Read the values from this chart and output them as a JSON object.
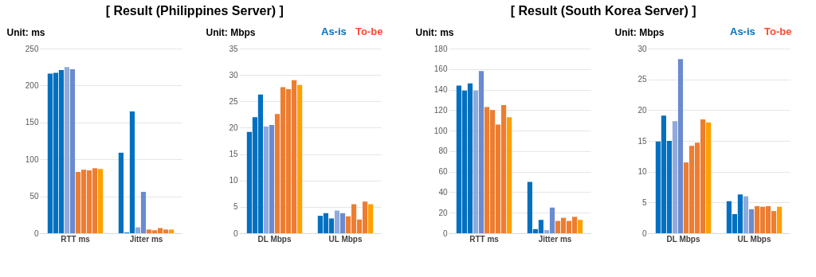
{
  "chart_data": [
    {
      "type": "bar",
      "title": "[ Result (Philippines Server) ]",
      "ylabel": "Unit: ms",
      "categories": [
        "RTT ms",
        "Jitter ms"
      ],
      "ylim": [
        0,
        250
      ],
      "yticks": [
        0,
        50,
        100,
        150,
        200,
        250
      ],
      "grid": "y",
      "legend": false,
      "series": [
        {
          "color": "#0070c0",
          "values": [
            216,
            109
          ]
        },
        {
          "color": "#0070c0",
          "values": [
            217,
            1
          ]
        },
        {
          "color": "#0070c0",
          "values": [
            221,
            165
          ]
        },
        {
          "color": "#8faadc",
          "values": [
            225,
            8
          ]
        },
        {
          "color": "#6a8bd0",
          "values": [
            222,
            56
          ]
        },
        {
          "color": "#ed7d31",
          "values": [
            83,
            5
          ]
        },
        {
          "color": "#ed7d31",
          "values": [
            86,
            4
          ]
        },
        {
          "color": "#ed7d31",
          "values": [
            85,
            7
          ]
        },
        {
          "color": "#ed7d31",
          "values": [
            88,
            5
          ]
        },
        {
          "color": "#ffa000",
          "values": [
            87,
            5
          ]
        }
      ]
    },
    {
      "type": "bar",
      "ylabel": "Unit: Mbps",
      "annotations": [
        "As-is",
        "To-be"
      ],
      "categories": [
        "DL Mbps",
        "UL Mbps"
      ],
      "ylim": [
        0,
        35
      ],
      "yticks": [
        0,
        5,
        10,
        15,
        20,
        25,
        30,
        35
      ],
      "grid": "y",
      "legend": false,
      "series": [
        {
          "color": "#0070c0",
          "values": [
            19.2,
            3.3
          ]
        },
        {
          "color": "#0070c0",
          "values": [
            22,
            3.8
          ]
        },
        {
          "color": "#0070c0",
          "values": [
            26.3,
            2.8
          ]
        },
        {
          "color": "#8faadc",
          "values": [
            20.2,
            4.3
          ]
        },
        {
          "color": "#6a8bd0",
          "values": [
            20.5,
            3.8
          ]
        },
        {
          "color": "#ed7d31",
          "values": [
            22.6,
            3.2
          ]
        },
        {
          "color": "#ed7d31",
          "values": [
            27.7,
            5.5
          ]
        },
        {
          "color": "#ed7d31",
          "values": [
            27.3,
            2.6
          ]
        },
        {
          "color": "#ed7d31",
          "values": [
            29,
            6
          ]
        },
        {
          "color": "#ffa000",
          "values": [
            28.1,
            5.5
          ]
        }
      ]
    },
    {
      "type": "bar",
      "title": "[ Result (South Korea Server) ]",
      "ylabel": "Unit: ms",
      "categories": [
        "RTT ms",
        "Jitter ms"
      ],
      "ylim": [
        0,
        180
      ],
      "yticks": [
        0,
        20,
        40,
        60,
        80,
        100,
        120,
        140,
        160,
        180
      ],
      "grid": "y",
      "legend": false,
      "series": [
        {
          "color": "#0070c0",
          "values": [
            144,
            50
          ]
        },
        {
          "color": "#0070c0",
          "values": [
            139,
            4
          ]
        },
        {
          "color": "#0070c0",
          "values": [
            146,
            13
          ]
        },
        {
          "color": "#8faadc",
          "values": [
            139,
            3
          ]
        },
        {
          "color": "#6a8bd0",
          "values": [
            158,
            25
          ]
        },
        {
          "color": "#ed7d31",
          "values": [
            123,
            12
          ]
        },
        {
          "color": "#ed7d31",
          "values": [
            120,
            15
          ]
        },
        {
          "color": "#ed7d31",
          "values": [
            106,
            12
          ]
        },
        {
          "color": "#ed7d31",
          "values": [
            125,
            16
          ]
        },
        {
          "color": "#ffa000",
          "values": [
            113,
            13
          ]
        }
      ]
    },
    {
      "type": "bar",
      "ylabel": "Unit: Mbps",
      "annotations": [
        "As-is",
        "To-be"
      ],
      "categories": [
        "DL Mbps",
        "UL Mbps"
      ],
      "ylim": [
        0,
        30
      ],
      "yticks": [
        0,
        5,
        10,
        15,
        20,
        25,
        30
      ],
      "grid": "y",
      "legend": false,
      "series": [
        {
          "color": "#0070c0",
          "values": [
            14.9,
            5.2
          ]
        },
        {
          "color": "#0070c0",
          "values": [
            19.1,
            3.1
          ]
        },
        {
          "color": "#0070c0",
          "values": [
            15,
            6.3
          ]
        },
        {
          "color": "#8faadc",
          "values": [
            18.2,
            6
          ]
        },
        {
          "color": "#6a8bd0",
          "values": [
            28.3,
            3.9
          ]
        },
        {
          "color": "#ed7d31",
          "values": [
            11.5,
            4.4
          ]
        },
        {
          "color": "#ed7d31",
          "values": [
            14.2,
            4.3
          ]
        },
        {
          "color": "#ed7d31",
          "values": [
            14.7,
            4.4
          ]
        },
        {
          "color": "#ed7d31",
          "values": [
            18.5,
            3.6
          ]
        },
        {
          "color": "#ffa000",
          "values": [
            18,
            4.3
          ]
        }
      ]
    }
  ]
}
